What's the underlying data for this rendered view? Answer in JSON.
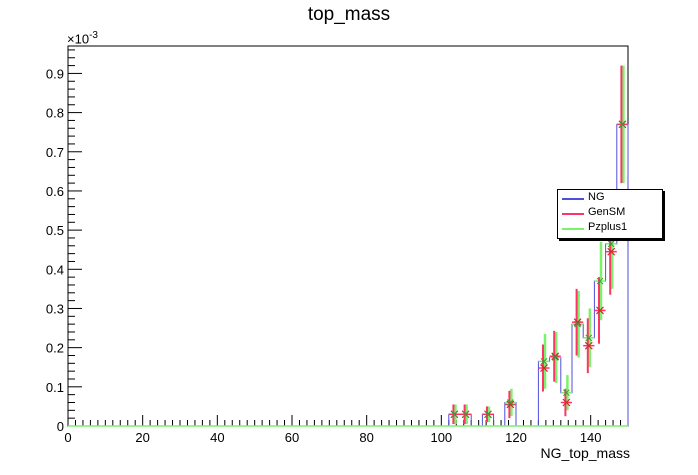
{
  "chart_data": {
    "type": "histogram",
    "title": "top_mass",
    "xlabel": "NG_top_mass",
    "ylabel": "",
    "y_multiplier": "×10^-3",
    "y_multiplier_base": "×10",
    "y_multiplier_exp": "-3",
    "xlim": [
      0,
      150
    ],
    "ylim": [
      0,
      0.97
    ],
    "x_ticks": [
      "0",
      "20",
      "40",
      "60",
      "80",
      "100",
      "120",
      "140"
    ],
    "x_tick_values": [
      0,
      20,
      40,
      60,
      80,
      100,
      120,
      140
    ],
    "y_ticks": [
      "0",
      "0.1",
      "0.2",
      "0.3",
      "0.4",
      "0.5",
      "0.6",
      "0.7",
      "0.8",
      "0.9"
    ],
    "y_tick_values": [
      0,
      0.1,
      0.2,
      0.3,
      0.4,
      0.5,
      0.6,
      0.7,
      0.8,
      0.9
    ],
    "bin_width": 3,
    "bin_edges_start": 0,
    "series": [
      {
        "name": "NG",
        "color": "#4f4fdd",
        "style": "step",
        "nonzero_bins": {
          "34": 0.03,
          "35": 0.03,
          "37": 0.03,
          "39": 0.06,
          "42": 0.165,
          "43": 0.175,
          "44": 0.085,
          "45": 0.26,
          "46": 0.225,
          "47": 0.37,
          "48": 0.465,
          "49": 0.77
        }
      },
      {
        "name": "GenSM",
        "color": "#ff3366",
        "style": "errorbar",
        "values": [
          {
            "x": 103.5,
            "y": 0.03,
            "err": 0.025
          },
          {
            "x": 106.5,
            "y": 0.03,
            "err": 0.025
          },
          {
            "x": 112.5,
            "y": 0.03,
            "err": 0.02
          },
          {
            "x": 118.5,
            "y": 0.055,
            "err": 0.035
          },
          {
            "x": 127.5,
            "y": 0.148,
            "err": 0.06
          },
          {
            "x": 130.5,
            "y": 0.178,
            "err": 0.065
          },
          {
            "x": 133.5,
            "y": 0.06,
            "err": 0.035
          },
          {
            "x": 136.5,
            "y": 0.265,
            "err": 0.085
          },
          {
            "x": 139.5,
            "y": 0.205,
            "err": 0.07
          },
          {
            "x": 142.5,
            "y": 0.295,
            "err": 0.085
          },
          {
            "x": 145.5,
            "y": 0.445,
            "err": 0.11
          },
          {
            "x": 148.5,
            "y": 0.77,
            "err": 0.15
          }
        ]
      },
      {
        "name": "Pzplus1",
        "color": "#7cf26c",
        "style": "errorbar",
        "values": [
          {
            "x": 103.5,
            "y": 0.03,
            "err": 0.025
          },
          {
            "x": 106.5,
            "y": 0.03,
            "err": 0.025
          },
          {
            "x": 112.5,
            "y": 0.03,
            "err": 0.02
          },
          {
            "x": 118.5,
            "y": 0.06,
            "err": 0.035
          },
          {
            "x": 127.5,
            "y": 0.165,
            "err": 0.07
          },
          {
            "x": 130.5,
            "y": 0.175,
            "err": 0.065
          },
          {
            "x": 133.5,
            "y": 0.085,
            "err": 0.045
          },
          {
            "x": 136.5,
            "y": 0.26,
            "err": 0.085
          },
          {
            "x": 139.5,
            "y": 0.225,
            "err": 0.075
          },
          {
            "x": 142.5,
            "y": 0.37,
            "err": 0.1
          },
          {
            "x": 145.5,
            "y": 0.465,
            "err": 0.115
          },
          {
            "x": 148.5,
            "y": 0.77,
            "err": 0.15
          }
        ]
      }
    ],
    "legend_placement": "right"
  }
}
